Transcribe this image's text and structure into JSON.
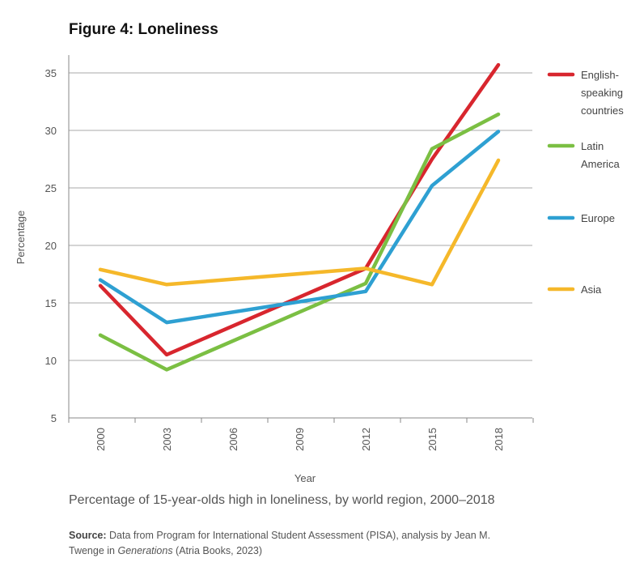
{
  "figure_title": "Figure 4: Loneliness",
  "caption": "Percentage of 15-year-olds high in loneliness, by world region, 2000–2018",
  "source": {
    "label": "Source:",
    "text_before": " Data from Program for International Student Assessment (PISA), analysis by Jean M. Twenge in ",
    "italic": "Generations",
    "text_after": " (Atria Books, 2023)"
  },
  "colors": {
    "grid": "#aaaaaa",
    "axis": "#888888"
  },
  "chart_data": {
    "type": "line",
    "title": "Figure 4: Loneliness",
    "xlabel": "Year",
    "ylabel": "Percentage",
    "ylim": [
      5,
      37
    ],
    "yticks": [
      5,
      10,
      15,
      20,
      25,
      30,
      35
    ],
    "x": [
      2000,
      2003,
      2006,
      2009,
      2012,
      2015,
      2018
    ],
    "grid": true,
    "legend_position": "right",
    "series": [
      {
        "name": "English-speaking countries",
        "legend_lines": [
          "English-",
          "speaking",
          "countries"
        ],
        "color": "#d8262e",
        "points": [
          [
            2000,
            16.5
          ],
          [
            2003,
            10.5
          ],
          [
            2012,
            18.0
          ],
          [
            2015,
            27.5
          ],
          [
            2018,
            35.7
          ]
        ]
      },
      {
        "name": "Latin America",
        "legend_lines": [
          "Latin",
          "America"
        ],
        "color": "#7bbf43",
        "points": [
          [
            2000,
            12.2
          ],
          [
            2003,
            9.2
          ],
          [
            2012,
            16.7
          ],
          [
            2015,
            28.4
          ],
          [
            2018,
            31.4
          ]
        ]
      },
      {
        "name": "Europe",
        "legend_lines": [
          "Europe"
        ],
        "color": "#2ea0d2",
        "points": [
          [
            2000,
            17.0
          ],
          [
            2003,
            13.3
          ],
          [
            2012,
            16.0
          ],
          [
            2015,
            25.2
          ],
          [
            2018,
            29.9
          ]
        ]
      },
      {
        "name": "Asia",
        "legend_lines": [
          "Asia"
        ],
        "color": "#f5b82a",
        "points": [
          [
            2000,
            17.9
          ],
          [
            2003,
            16.6
          ],
          [
            2012,
            18.0
          ],
          [
            2015,
            16.6
          ],
          [
            2018,
            27.4
          ]
        ]
      }
    ]
  }
}
